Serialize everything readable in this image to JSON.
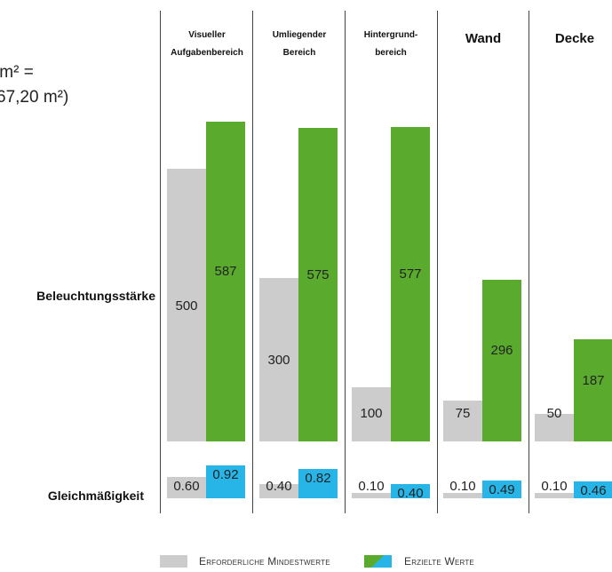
{
  "fragments": {
    "line1": "/m² =",
    "line2": "67,20 m²)"
  },
  "chart_data": {
    "type": "bar",
    "categories": [
      "Visueller Aufgabenbereich",
      "Umliegender Bereich",
      "Hintergrund-bereich",
      "Wand",
      "Decke"
    ],
    "category_lines": [
      [
        "Visueller",
        "Aufgabenbereich"
      ],
      [
        "Umliegender",
        "Bereich"
      ],
      [
        "Hintergrund-",
        "bereich"
      ],
      [
        "Wand"
      ],
      [
        "Decke"
      ]
    ],
    "panels": [
      {
        "name": "Beleuchtungsstärke",
        "series": [
          {
            "name": "Erforderliche Mindestwerte",
            "values": [
              500,
              300,
              100,
              75,
              50
            ]
          },
          {
            "name": "Erzielte Werte",
            "values": [
              587,
              575,
              577,
              296,
              187
            ]
          }
        ],
        "value_labels": {
          "required": [
            "500",
            "300",
            "100",
            "75",
            "50"
          ],
          "achieved": [
            "587",
            "575",
            "577",
            "296",
            "187"
          ]
        }
      },
      {
        "name": "Gleichmäßigkeit",
        "series": [
          {
            "name": "Erforderliche Mindestwerte",
            "values": [
              0.6,
              0.4,
              0.1,
              0.1,
              0.1
            ]
          },
          {
            "name": "Erzielte Werte",
            "values": [
              0.92,
              0.82,
              0.4,
              0.49,
              0.46
            ]
          }
        ],
        "value_labels": {
          "required": [
            "0.60",
            "0.40",
            "0.10",
            "0.10",
            "0.10"
          ],
          "achieved": [
            "0.92",
            "0.82",
            "0.40",
            "0.49",
            "0.46"
          ]
        }
      }
    ],
    "legend": {
      "position": "bottom",
      "required_label": "Erforderliche Mindestwerte",
      "achieved_label": "Erzielte Werte"
    },
    "grid": false
  },
  "colors": {
    "required": "#cccccc",
    "achieved_illuminance": "#5aab2d",
    "achieved_uniformity": "#27b5e8"
  }
}
